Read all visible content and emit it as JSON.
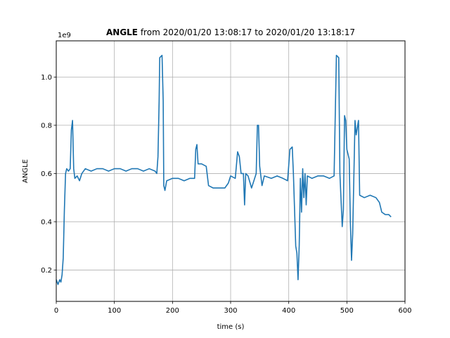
{
  "chart_data": {
    "type": "line",
    "title_bold": "ANGLE",
    "title_rest": " from 2020/01/20 13:08:17 to 2020/01/20 13:18:17",
    "xlabel": "time (s)",
    "ylabel": "ANGLE",
    "y_offset_label": "1e9",
    "xlim": [
      0,
      600
    ],
    "ylim": [
      0.07,
      1.15
    ],
    "x_ticks": [
      0,
      100,
      200,
      300,
      400,
      500,
      600
    ],
    "x_tick_labels": [
      "0",
      "100",
      "200",
      "300",
      "400",
      "500",
      "600"
    ],
    "y_ticks": [
      0.2,
      0.4,
      0.6,
      0.8,
      1.0
    ],
    "y_tick_labels": [
      "0.2",
      "0.4",
      "0.6",
      "0.8",
      "1.0"
    ],
    "grid": true,
    "series": [
      {
        "color": "#1f77b4",
        "points": [
          [
            0,
            0.16
          ],
          [
            3,
            0.14
          ],
          [
            6,
            0.16
          ],
          [
            8,
            0.15
          ],
          [
            10,
            0.18
          ],
          [
            12,
            0.25
          ],
          [
            14,
            0.45
          ],
          [
            16,
            0.6
          ],
          [
            18,
            0.62
          ],
          [
            21,
            0.61
          ],
          [
            24,
            0.62
          ],
          [
            26,
            0.78
          ],
          [
            28,
            0.82
          ],
          [
            30,
            0.62
          ],
          [
            32,
            0.58
          ],
          [
            36,
            0.59
          ],
          [
            40,
            0.57
          ],
          [
            44,
            0.6
          ],
          [
            50,
            0.62
          ],
          [
            60,
            0.61
          ],
          [
            70,
            0.62
          ],
          [
            80,
            0.62
          ],
          [
            90,
            0.61
          ],
          [
            100,
            0.62
          ],
          [
            110,
            0.62
          ],
          [
            120,
            0.61
          ],
          [
            130,
            0.62
          ],
          [
            140,
            0.62
          ],
          [
            150,
            0.61
          ],
          [
            160,
            0.62
          ],
          [
            170,
            0.61
          ],
          [
            173,
            0.6
          ],
          [
            175,
            0.67
          ],
          [
            177,
            0.9
          ],
          [
            178,
            1.08
          ],
          [
            182,
            1.09
          ],
          [
            184,
            0.9
          ],
          [
            185,
            0.55
          ],
          [
            187,
            0.53
          ],
          [
            190,
            0.57
          ],
          [
            200,
            0.58
          ],
          [
            210,
            0.58
          ],
          [
            220,
            0.57
          ],
          [
            230,
            0.58
          ],
          [
            238,
            0.58
          ],
          [
            240,
            0.7
          ],
          [
            242,
            0.72
          ],
          [
            244,
            0.64
          ],
          [
            250,
            0.64
          ],
          [
            258,
            0.63
          ],
          [
            262,
            0.55
          ],
          [
            270,
            0.54
          ],
          [
            280,
            0.54
          ],
          [
            290,
            0.54
          ],
          [
            296,
            0.56
          ],
          [
            300,
            0.59
          ],
          [
            308,
            0.58
          ],
          [
            312,
            0.69
          ],
          [
            315,
            0.67
          ],
          [
            318,
            0.6
          ],
          [
            322,
            0.6
          ],
          [
            324,
            0.47
          ],
          [
            326,
            0.6
          ],
          [
            330,
            0.59
          ],
          [
            336,
            0.54
          ],
          [
            340,
            0.57
          ],
          [
            344,
            0.6
          ],
          [
            346,
            0.8
          ],
          [
            348,
            0.8
          ],
          [
            350,
            0.63
          ],
          [
            354,
            0.55
          ],
          [
            358,
            0.59
          ],
          [
            370,
            0.58
          ],
          [
            380,
            0.59
          ],
          [
            390,
            0.58
          ],
          [
            398,
            0.57
          ],
          [
            402,
            0.7
          ],
          [
            406,
            0.71
          ],
          [
            408,
            0.6
          ],
          [
            410,
            0.45
          ],
          [
            412,
            0.3
          ],
          [
            414,
            0.27
          ],
          [
            416,
            0.16
          ],
          [
            418,
            0.3
          ],
          [
            420,
            0.58
          ],
          [
            422,
            0.44
          ],
          [
            424,
            0.62
          ],
          [
            426,
            0.5
          ],
          [
            428,
            0.6
          ],
          [
            430,
            0.47
          ],
          [
            432,
            0.59
          ],
          [
            440,
            0.58
          ],
          [
            450,
            0.59
          ],
          [
            460,
            0.59
          ],
          [
            470,
            0.58
          ],
          [
            478,
            0.59
          ],
          [
            482,
            1.09
          ],
          [
            486,
            1.08
          ],
          [
            488,
            0.6
          ],
          [
            492,
            0.38
          ],
          [
            494,
            0.45
          ],
          [
            496,
            0.84
          ],
          [
            498,
            0.82
          ],
          [
            500,
            0.7
          ],
          [
            504,
            0.66
          ],
          [
            506,
            0.4
          ],
          [
            508,
            0.24
          ],
          [
            510,
            0.35
          ],
          [
            514,
            0.82
          ],
          [
            516,
            0.76
          ],
          [
            520,
            0.82
          ],
          [
            522,
            0.51
          ],
          [
            530,
            0.5
          ],
          [
            540,
            0.51
          ],
          [
            550,
            0.5
          ],
          [
            556,
            0.48
          ],
          [
            560,
            0.44
          ],
          [
            566,
            0.43
          ],
          [
            572,
            0.43
          ],
          [
            576,
            0.42
          ]
        ]
      }
    ]
  }
}
